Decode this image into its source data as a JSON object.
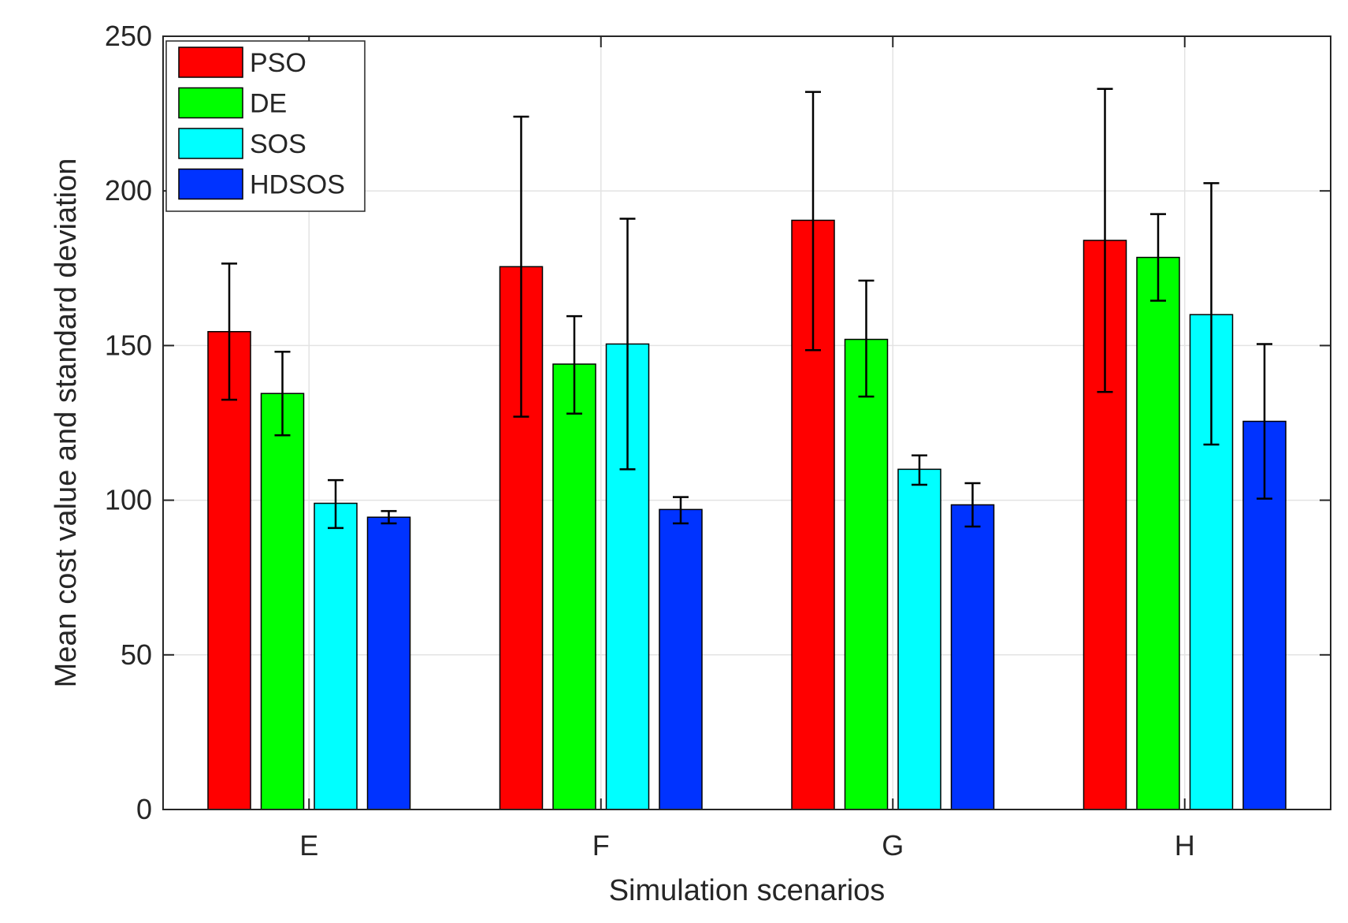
{
  "chart_data": {
    "type": "bar",
    "title": "",
    "xlabel": "Simulation scenarios",
    "ylabel": "Mean cost value and standard deviation",
    "categories": [
      "E",
      "F",
      "G",
      "H"
    ],
    "ylim": [
      0,
      250
    ],
    "yticks": [
      0,
      50,
      100,
      150,
      200,
      250
    ],
    "grid": true,
    "legend_position": "top-left",
    "error_bars": true,
    "series": [
      {
        "name": "PSO",
        "color": "#ff0000",
        "values": [
          154.5,
          175.5,
          190.5,
          184.0
        ],
        "lower": [
          132.5,
          127.0,
          148.5,
          135.0
        ],
        "upper": [
          176.5,
          224.0,
          232.0,
          233.0
        ]
      },
      {
        "name": "DE",
        "color": "#00ff00",
        "values": [
          134.5,
          144.0,
          152.0,
          178.5
        ],
        "lower": [
          121.0,
          128.0,
          133.5,
          164.5
        ],
        "upper": [
          148.0,
          159.5,
          171.0,
          192.5
        ]
      },
      {
        "name": "SOS",
        "color": "#00ffff",
        "values": [
          99.0,
          150.5,
          110.0,
          160.0
        ],
        "lower": [
          91.0,
          110.0,
          105.0,
          118.0
        ],
        "upper": [
          106.5,
          191.0,
          114.5,
          202.5
        ]
      },
      {
        "name": "HDSOS",
        "color": "#0033ff",
        "values": [
          94.5,
          97.0,
          98.5,
          125.5
        ],
        "lower": [
          92.5,
          92.5,
          91.5,
          100.5
        ],
        "upper": [
          96.5,
          101.0,
          105.5,
          150.5
        ]
      }
    ]
  }
}
